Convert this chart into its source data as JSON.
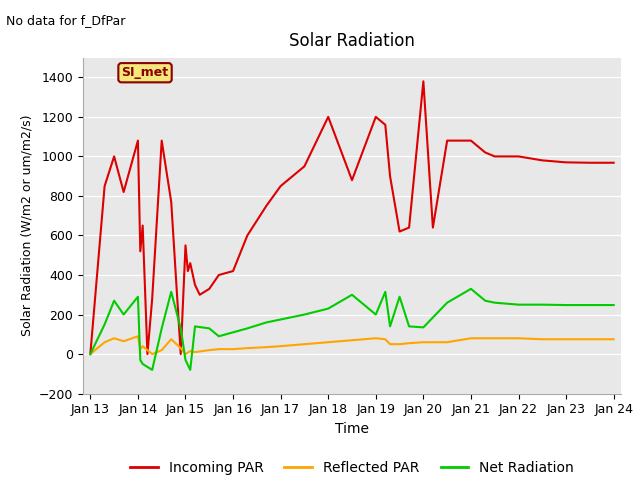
{
  "title": "Solar Radiation",
  "subtitle": "No data for f_DfPar",
  "xlabel": "Time",
  "ylabel": "Solar Radiation (W/m2 or um/m2/s)",
  "ylim": [
    -200,
    1500
  ],
  "yticks": [
    -200,
    0,
    200,
    400,
    600,
    800,
    1000,
    1200,
    1400
  ],
  "bg_color": "#e8e8e8",
  "legend_label": "SI_met",
  "legend_box_facecolor": "#f5e87a",
  "legend_box_edgecolor": "#8b0000",
  "series": {
    "incoming_par": {
      "label": "Incoming PAR",
      "color": "#dd0000",
      "x": [
        13.0,
        13.3,
        13.5,
        13.7,
        14.0,
        14.05,
        14.1,
        14.2,
        14.3,
        14.5,
        14.7,
        14.9,
        15.0,
        15.05,
        15.1,
        15.2,
        15.3,
        15.5,
        15.7,
        16.0,
        16.3,
        16.7,
        17.0,
        17.5,
        18.0,
        18.5,
        19.0,
        19.2,
        19.3,
        19.5,
        19.7,
        20.0,
        20.2,
        20.5,
        21.0,
        21.3,
        21.5,
        22.0,
        22.5,
        23.0,
        23.5,
        24.0
      ],
      "y": [
        0,
        850,
        1000,
        820,
        1080,
        520,
        650,
        0,
        280,
        1080,
        770,
        0,
        550,
        420,
        460,
        350,
        300,
        330,
        400,
        420,
        600,
        750,
        850,
        950,
        1200,
        880,
        1200,
        1160,
        900,
        620,
        640,
        1380,
        640,
        1080,
        1080,
        1020,
        1000,
        1000,
        980,
        970,
        968,
        968
      ]
    },
    "reflected_par": {
      "label": "Reflected PAR",
      "color": "#ffa500",
      "x": [
        13.0,
        13.3,
        13.5,
        13.7,
        14.0,
        14.05,
        14.1,
        14.3,
        14.5,
        14.7,
        14.9,
        15.0,
        15.1,
        15.2,
        15.5,
        15.7,
        16.0,
        16.3,
        16.7,
        17.0,
        17.5,
        18.0,
        18.5,
        19.0,
        19.2,
        19.3,
        19.5,
        19.7,
        20.0,
        20.5,
        21.0,
        21.5,
        22.0,
        22.5,
        23.0,
        23.5,
        24.0
      ],
      "y": [
        0,
        60,
        80,
        65,
        90,
        25,
        40,
        0,
        20,
        75,
        30,
        0,
        15,
        10,
        20,
        25,
        25,
        30,
        35,
        40,
        50,
        60,
        70,
        80,
        75,
        50,
        50,
        55,
        60,
        60,
        80,
        80,
        80,
        75,
        75,
        75,
        75
      ]
    },
    "net_radiation": {
      "label": "Net Radiation",
      "color": "#00cc00",
      "x": [
        13.0,
        13.3,
        13.5,
        13.7,
        14.0,
        14.05,
        14.1,
        14.3,
        14.5,
        14.7,
        14.9,
        15.0,
        15.1,
        15.2,
        15.5,
        15.7,
        16.0,
        16.3,
        16.7,
        17.0,
        17.5,
        18.0,
        18.5,
        19.0,
        19.2,
        19.3,
        19.5,
        19.7,
        20.0,
        20.5,
        21.0,
        21.3,
        21.5,
        22.0,
        22.5,
        23.0,
        23.5,
        24.0
      ],
      "y": [
        0,
        150,
        270,
        200,
        290,
        -30,
        -50,
        -80,
        130,
        315,
        130,
        -30,
        -80,
        140,
        130,
        90,
        110,
        130,
        160,
        175,
        200,
        230,
        300,
        200,
        315,
        140,
        290,
        140,
        135,
        260,
        330,
        270,
        260,
        250,
        250,
        248,
        248,
        248
      ]
    }
  },
  "x_ticks": [
    13,
    14,
    15,
    16,
    17,
    18,
    19,
    20,
    21,
    22,
    23,
    24
  ],
  "x_tick_labels": [
    "Jan 13",
    "Jan 14",
    "Jan 15",
    "Jan 16",
    "Jan 17",
    "Jan 18",
    "Jan 19",
    "Jan 20",
    "Jan 21",
    "Jan 22",
    "Jan 23",
    "Jan 24"
  ],
  "xlim": [
    12.85,
    24.15
  ]
}
